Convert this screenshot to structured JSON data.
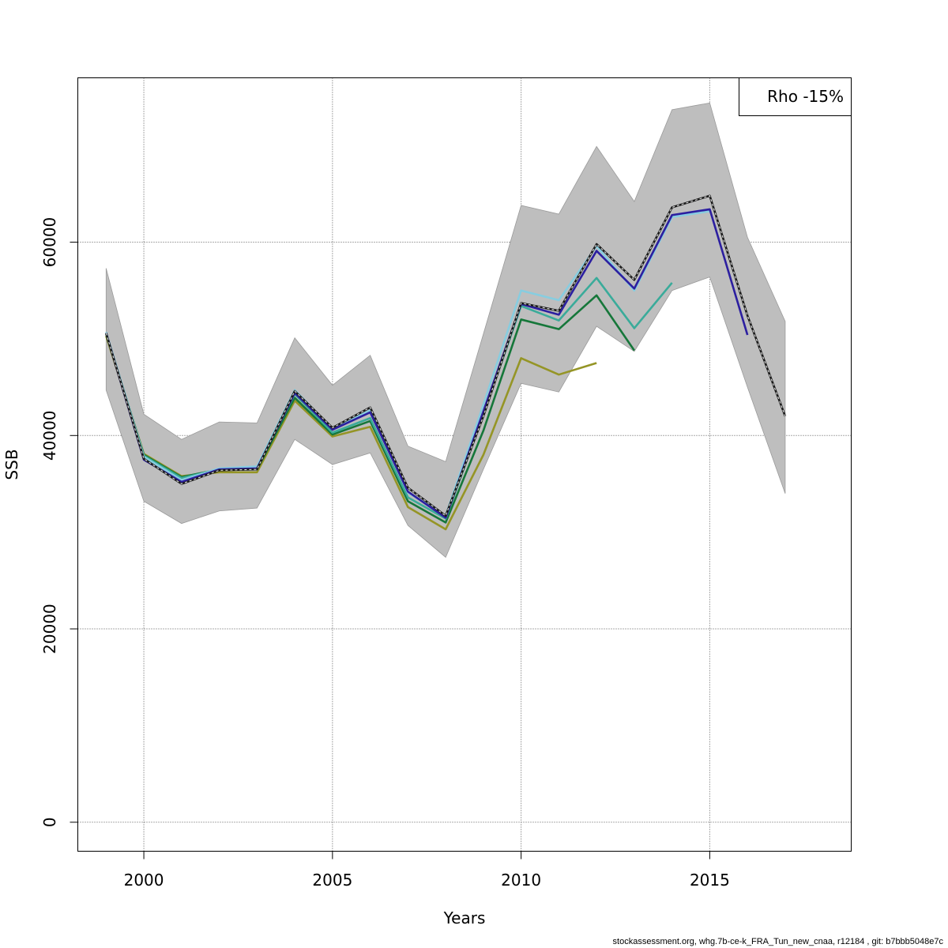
{
  "chart_data": {
    "type": "line",
    "xlabel": "Years",
    "ylabel": "SSB",
    "xlim": [
      1998.25,
      2018.75
    ],
    "ylim": [
      -3000,
      77000
    ],
    "x_ticks": [
      2000,
      2005,
      2010,
      2015
    ],
    "y_ticks": [
      0,
      20000,
      40000,
      60000
    ],
    "x_tick_labels": [
      "2000",
      "2005",
      "2010",
      "2015"
    ],
    "y_tick_labels": [
      "0",
      "20000",
      "40000",
      "60000"
    ],
    "grid": true,
    "legend": {
      "position": "top-right",
      "text": "Rho -15%"
    },
    "confidence_band": {
      "x": [
        1999,
        2000,
        2001,
        2002,
        2003,
        2004,
        2005,
        2006,
        2007,
        2008,
        2009,
        2010,
        2011,
        2012,
        2013,
        2014,
        2015,
        2016,
        2017
      ],
      "lower": [
        44700,
        33200,
        30900,
        32200,
        32500,
        39600,
        37000,
        38200,
        30700,
        27400,
        36500,
        45400,
        44500,
        51300,
        48700,
        55000,
        56400,
        45000,
        34000
      ],
      "upper": [
        57300,
        42200,
        39600,
        41400,
        41300,
        50100,
        45200,
        48300,
        38900,
        37300,
        50500,
        63800,
        62900,
        69900,
        64200,
        73700,
        74400,
        60500,
        51800
      ]
    },
    "series": [
      {
        "color": "#1a1a1a",
        "dashed_overlay": true,
        "x": [
          1999,
          2000,
          2001,
          2002,
          2003,
          2004,
          2005,
          2006,
          2007,
          2008,
          2009,
          2010,
          2011,
          2012,
          2013,
          2014,
          2015,
          2016,
          2017
        ],
        "values": [
          50600,
          37600,
          35000,
          36400,
          36500,
          44600,
          40800,
          42900,
          34600,
          31700,
          42000,
          53700,
          52900,
          59800,
          56100,
          63600,
          64800,
          52400,
          42000
        ]
      },
      {
        "color": "#2c1fa0",
        "x": [
          1999,
          2000,
          2001,
          2002,
          2003,
          2004,
          2005,
          2006,
          2007,
          2008,
          2009,
          2010,
          2011,
          2012,
          2013,
          2014,
          2015,
          2016
        ],
        "values": [
          50600,
          37500,
          35200,
          36500,
          36600,
          44400,
          40600,
          42400,
          34200,
          31500,
          42500,
          53600,
          52500,
          59100,
          55200,
          62800,
          63400,
          50400
        ]
      },
      {
        "color": "#87cde0",
        "x": [
          1999,
          2000,
          2001,
          2002,
          2003,
          2004,
          2005,
          2006,
          2007,
          2008,
          2009,
          2010,
          2011,
          2012,
          2013,
          2014,
          2015
        ],
        "values": [
          50700,
          37800,
          35400,
          36600,
          36800,
          44700,
          40700,
          42600,
          34100,
          31700,
          43200,
          55000,
          54000,
          59600,
          55000,
          62600,
          63200
        ]
      },
      {
        "color": "#3aab9a",
        "x": [
          1999,
          2000,
          2001,
          2002,
          2003,
          2004,
          2005,
          2006,
          2007,
          2008,
          2009,
          2010,
          2011,
          2012,
          2013,
          2014
        ],
        "values": [
          50600,
          37900,
          35600,
          36500,
          36700,
          44300,
          40300,
          41800,
          33600,
          31400,
          42200,
          53400,
          51900,
          56300,
          51100,
          55800
        ]
      },
      {
        "color": "#16773a",
        "x": [
          1999,
          2000,
          2001,
          2002,
          2003,
          2004,
          2005,
          2006,
          2007,
          2008,
          2009,
          2010,
          2011,
          2012,
          2013
        ],
        "values": [
          50500,
          38000,
          35700,
          36500,
          36500,
          43900,
          40100,
          41500,
          33200,
          31000,
          40500,
          52000,
          51000,
          54500,
          48800
        ]
      },
      {
        "color": "#959526",
        "x": [
          1999,
          2000,
          2001,
          2002,
          2003,
          2004,
          2005,
          2006,
          2007,
          2008,
          2009,
          2010,
          2011,
          2012
        ],
        "values": [
          50300,
          38100,
          35800,
          36200,
          36200,
          43600,
          39900,
          40900,
          32600,
          30300,
          38000,
          48000,
          46300,
          47500
        ]
      }
    ]
  },
  "footer_text": "stockassessment.org, whg.7b-ce-k_FRA_Tun_new_cnaa, r12184 , git: b7bbb5048e7c"
}
